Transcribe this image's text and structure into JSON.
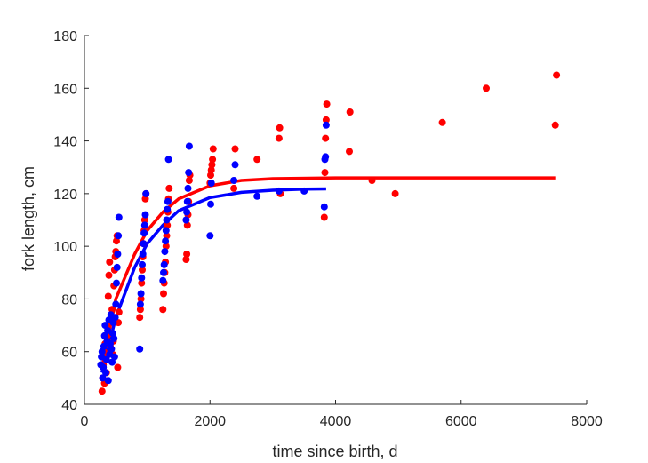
{
  "chart_data": {
    "type": "scatter",
    "title": "",
    "xlabel": "time since birth, d",
    "ylabel": "fork length, cm",
    "xlim": [
      0,
      8000
    ],
    "ylim": [
      40,
      180
    ],
    "xticks": [
      0,
      2000,
      4000,
      6000,
      8000
    ],
    "yticks": [
      40,
      60,
      80,
      100,
      120,
      140,
      160,
      180
    ],
    "grid": false,
    "legend": "none",
    "series": [
      {
        "color": "#ff0000",
        "marker": "circle",
        "points": [
          [
            280,
            45
          ],
          [
            290,
            50
          ],
          [
            300,
            55
          ],
          [
            310,
            60
          ],
          [
            320,
            48
          ],
          [
            330,
            63
          ],
          [
            340,
            58
          ],
          [
            350,
            52
          ],
          [
            360,
            66
          ],
          [
            370,
            70
          ],
          [
            380,
            81
          ],
          [
            390,
            89
          ],
          [
            400,
            94
          ],
          [
            410,
            62
          ],
          [
            420,
            67
          ],
          [
            430,
            72
          ],
          [
            440,
            76
          ],
          [
            450,
            59
          ],
          [
            460,
            64
          ],
          [
            470,
            85
          ],
          [
            480,
            91
          ],
          [
            490,
            96
          ],
          [
            500,
            98
          ],
          [
            510,
            102
          ],
          [
            520,
            104
          ],
          [
            530,
            54
          ],
          [
            540,
            71
          ],
          [
            550,
            75
          ],
          [
            880,
            73
          ],
          [
            890,
            76
          ],
          [
            900,
            80
          ],
          [
            910,
            86
          ],
          [
            920,
            91
          ],
          [
            930,
            96
          ],
          [
            940,
            101
          ],
          [
            950,
            106
          ],
          [
            960,
            110
          ],
          [
            970,
            118
          ],
          [
            980,
            120
          ],
          [
            1250,
            76
          ],
          [
            1260,
            82
          ],
          [
            1270,
            86
          ],
          [
            1280,
            90
          ],
          [
            1290,
            94
          ],
          [
            1300,
            100
          ],
          [
            1310,
            104
          ],
          [
            1320,
            108
          ],
          [
            1330,
            113
          ],
          [
            1340,
            118
          ],
          [
            1350,
            122
          ],
          [
            1620,
            95
          ],
          [
            1630,
            97
          ],
          [
            1640,
            108
          ],
          [
            1650,
            112
          ],
          [
            1660,
            117
          ],
          [
            1670,
            125
          ],
          [
            1680,
            127
          ],
          [
            2000,
            124
          ],
          [
            2010,
            127
          ],
          [
            2020,
            129
          ],
          [
            2030,
            131
          ],
          [
            2040,
            133
          ],
          [
            2050,
            137
          ],
          [
            2380,
            122
          ],
          [
            2400,
            137
          ],
          [
            2750,
            133
          ],
          [
            3100,
            141
          ],
          [
            3110,
            145
          ],
          [
            3120,
            120
          ],
          [
            3820,
            111
          ],
          [
            3830,
            128
          ],
          [
            3840,
            141
          ],
          [
            3850,
            148
          ],
          [
            3860,
            154
          ],
          [
            4220,
            136
          ],
          [
            4230,
            151
          ],
          [
            4580,
            125
          ],
          [
            4950,
            120
          ],
          [
            5700,
            147
          ],
          [
            6400,
            160
          ],
          [
            7500,
            146
          ],
          [
            7520,
            165
          ]
        ],
        "fit": [
          [
            280,
            54
          ],
          [
            500,
            80
          ],
          [
            800,
            97
          ],
          [
            1000,
            106
          ],
          [
            1250,
            113
          ],
          [
            1500,
            118
          ],
          [
            2000,
            123
          ],
          [
            2500,
            125
          ],
          [
            3000,
            125.7
          ],
          [
            4000,
            126
          ],
          [
            5000,
            126
          ],
          [
            6000,
            126
          ],
          [
            7500,
            126
          ]
        ]
      },
      {
        "color": "#0000ff",
        "marker": "circle",
        "points": [
          [
            260,
            55
          ],
          [
            270,
            58
          ],
          [
            280,
            60
          ],
          [
            290,
            50
          ],
          [
            300,
            54
          ],
          [
            310,
            62
          ],
          [
            320,
            66
          ],
          [
            330,
            70
          ],
          [
            340,
            52
          ],
          [
            350,
            57
          ],
          [
            360,
            64
          ],
          [
            370,
            68
          ],
          [
            380,
            49
          ],
          [
            390,
            72
          ],
          [
            400,
            59
          ],
          [
            410,
            63
          ],
          [
            420,
            74
          ],
          [
            430,
            61
          ],
          [
            440,
            56
          ],
          [
            450,
            67
          ],
          [
            460,
            71
          ],
          [
            470,
            65
          ],
          [
            480,
            58
          ],
          [
            490,
            73
          ],
          [
            500,
            78
          ],
          [
            510,
            86
          ],
          [
            520,
            92
          ],
          [
            530,
            97
          ],
          [
            540,
            104
          ],
          [
            550,
            111
          ],
          [
            880,
            61
          ],
          [
            890,
            78
          ],
          [
            900,
            82
          ],
          [
            910,
            88
          ],
          [
            920,
            93
          ],
          [
            930,
            97
          ],
          [
            940,
            101
          ],
          [
            950,
            105
          ],
          [
            960,
            108
          ],
          [
            970,
            112
          ],
          [
            980,
            120
          ],
          [
            1250,
            87
          ],
          [
            1260,
            90
          ],
          [
            1270,
            93
          ],
          [
            1280,
            98
          ],
          [
            1290,
            102
          ],
          [
            1300,
            106
          ],
          [
            1310,
            110
          ],
          [
            1320,
            114
          ],
          [
            1330,
            117
          ],
          [
            1340,
            133
          ],
          [
            1620,
            110
          ],
          [
            1630,
            113
          ],
          [
            1640,
            117
          ],
          [
            1650,
            122
          ],
          [
            1660,
            128
          ],
          [
            1670,
            138
          ],
          [
            2000,
            104
          ],
          [
            2010,
            116
          ],
          [
            2020,
            124
          ],
          [
            2380,
            125
          ],
          [
            2400,
            131
          ],
          [
            2750,
            119
          ],
          [
            3100,
            121
          ],
          [
            3500,
            121
          ],
          [
            3820,
            115
          ],
          [
            3830,
            133
          ],
          [
            3840,
            134
          ],
          [
            3850,
            146
          ]
        ],
        "fit": [
          [
            280,
            52
          ],
          [
            500,
            73
          ],
          [
            800,
            92
          ],
          [
            1000,
            101
          ],
          [
            1250,
            108
          ],
          [
            1500,
            113.5
          ],
          [
            2000,
            118.5
          ],
          [
            2500,
            120.5
          ],
          [
            3000,
            121.3
          ],
          [
            3500,
            121.7
          ],
          [
            3850,
            121.8
          ]
        ]
      }
    ]
  }
}
